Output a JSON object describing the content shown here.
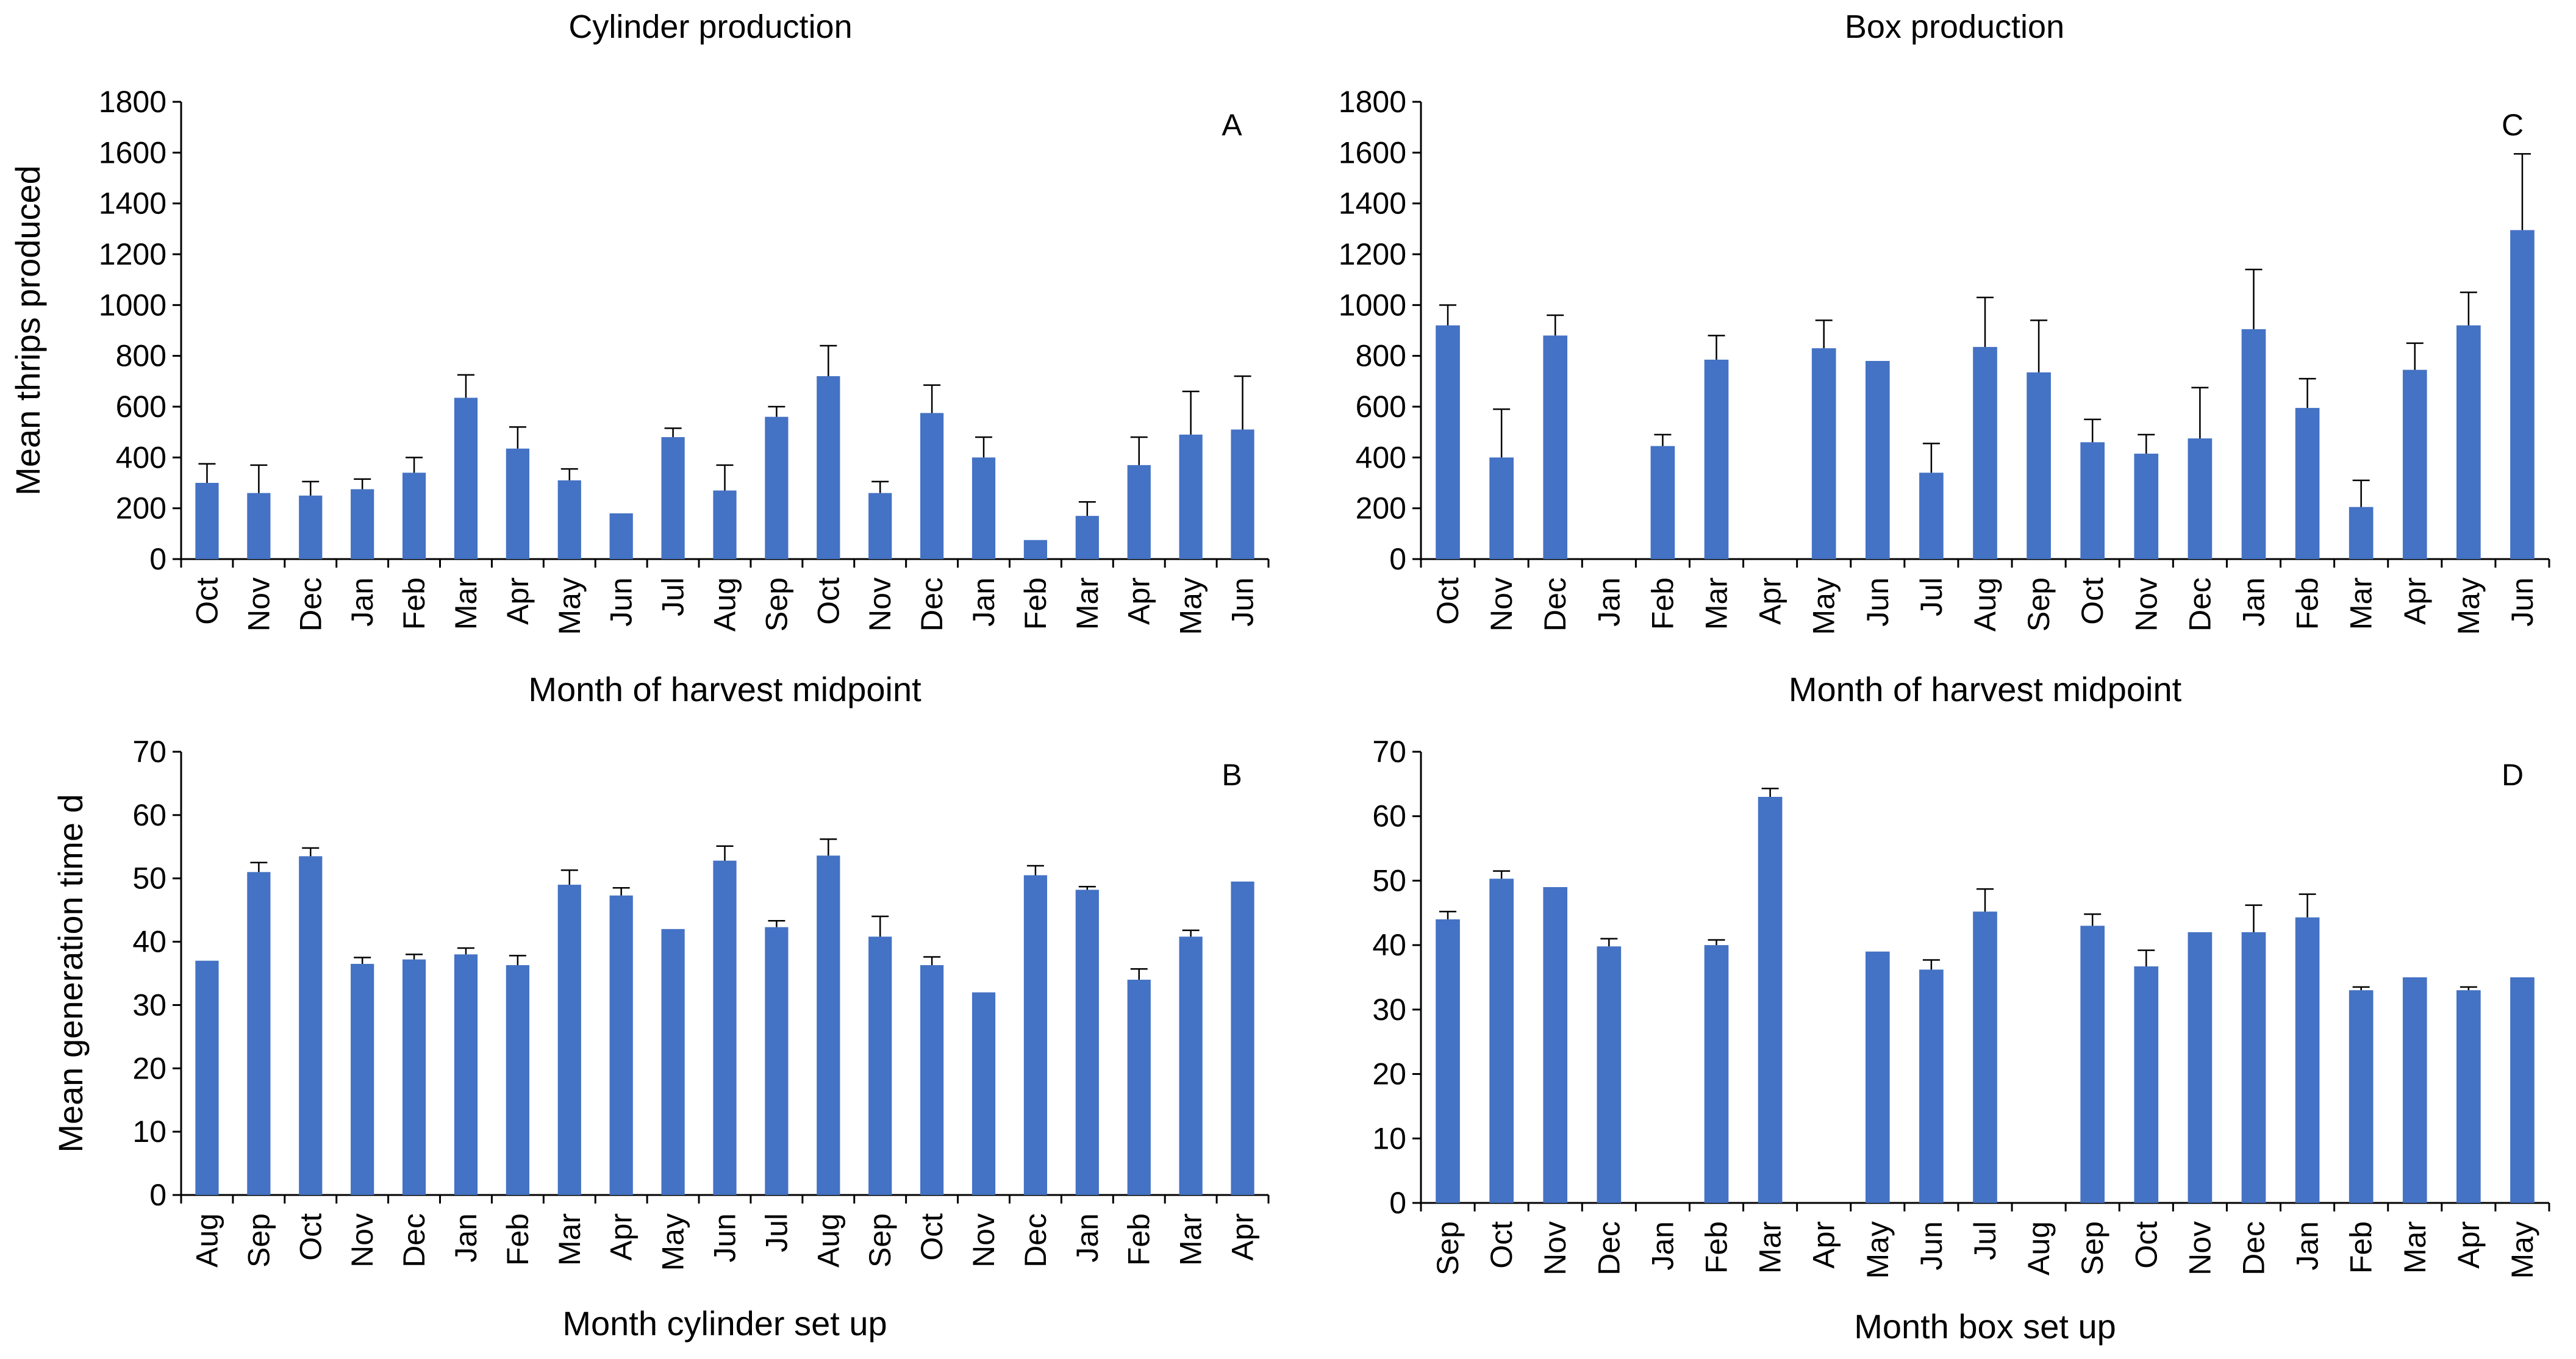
{
  "chart_data": [
    {
      "id": "A",
      "type": "bar",
      "panel_label": "A",
      "group_title": "Cylinder production",
      "title": "",
      "xlabel": "Month of harvest midpoint",
      "ylabel": "Mean thrips produced",
      "ylim": [
        0,
        1800
      ],
      "yticks": [
        "0",
        "200",
        "400",
        "600",
        "800",
        "1000",
        "1200",
        "1400",
        "1600",
        "1800"
      ],
      "categories": [
        "Oct",
        "Nov",
        "Dec",
        "Jan",
        "Feb",
        "Mar",
        "Apr",
        "May",
        "Jun",
        "Jul",
        "Aug",
        "Sep",
        "Oct",
        "Nov",
        "Dec",
        "Jan",
        "Feb",
        "Mar",
        "Apr",
        "May",
        "Jun"
      ],
      "values": [
        300,
        260,
        250,
        275,
        340,
        635,
        435,
        310,
        180,
        480,
        270,
        560,
        720,
        260,
        575,
        400,
        75,
        170,
        370,
        490,
        510
      ],
      "errors": [
        75,
        110,
        55,
        40,
        60,
        90,
        85,
        45,
        0,
        35,
        100,
        40,
        120,
        45,
        110,
        80,
        0,
        55,
        110,
        170,
        210
      ]
    },
    {
      "id": "B",
      "type": "bar",
      "panel_label": "B",
      "title": "",
      "xlabel": "Month cylinder set up",
      "ylabel": "Mean generation time d",
      "ylim": [
        0,
        70
      ],
      "yticks": [
        "0",
        "10",
        "20",
        "30",
        "40",
        "50",
        "60",
        "70"
      ],
      "categories": [
        "Aug",
        "Sep",
        "Oct",
        "Nov",
        "Dec",
        "Jan",
        "Feb",
        "Mar",
        "Apr",
        "May",
        "Jun",
        "Jul",
        "Aug",
        "Sep",
        "Oct",
        "Nov",
        "Dec",
        "Jan",
        "Feb",
        "Mar",
        "Apr"
      ],
      "values": [
        37,
        51,
        53.5,
        36.5,
        37.2,
        38,
        36.3,
        49,
        47.3,
        42,
        52.8,
        42.3,
        53.6,
        40.8,
        36.3,
        32,
        50.5,
        48.2,
        34,
        40.8,
        49.5
      ],
      "errors": [
        0,
        1.5,
        1.3,
        1,
        0.8,
        1,
        1.5,
        2.3,
        1.2,
        0,
        2.3,
        1,
        2.6,
        3.2,
        1.3,
        0,
        1.5,
        0.5,
        1.7,
        1,
        0
      ]
    },
    {
      "id": "C",
      "type": "bar",
      "panel_label": "C",
      "group_title": "Box production",
      "title": "",
      "xlabel": "Month of harvest midpoint",
      "ylabel": "",
      "ylim": [
        0,
        1800
      ],
      "yticks": [
        "0",
        "200",
        "400",
        "600",
        "800",
        "1000",
        "1200",
        "1400",
        "1600",
        "1800"
      ],
      "categories": [
        "Oct",
        "Nov",
        "Dec",
        "Jan",
        "Feb",
        "Mar",
        "Apr",
        "May",
        "Jun",
        "Jul",
        "Aug",
        "Sep",
        "Oct",
        "Nov",
        "Dec",
        "Jan",
        "Feb",
        "Mar",
        "Apr",
        "May",
        "Jun"
      ],
      "values": [
        920,
        400,
        880,
        null,
        445,
        785,
        null,
        830,
        780,
        340,
        835,
        735,
        460,
        415,
        475,
        905,
        595,
        205,
        745,
        920,
        1295
      ],
      "errors": [
        80,
        190,
        80,
        0,
        45,
        95,
        0,
        110,
        0,
        115,
        195,
        205,
        90,
        75,
        200,
        235,
        115,
        105,
        105,
        130,
        300
      ]
    },
    {
      "id": "D",
      "type": "bar",
      "panel_label": "D",
      "title": "",
      "xlabel": "Month box set up",
      "ylabel": "",
      "ylim": [
        0,
        70
      ],
      "yticks": [
        "0",
        "10",
        "20",
        "30",
        "40",
        "50",
        "60",
        "70"
      ],
      "categories": [
        "Sep",
        "Oct",
        "Nov",
        "Dec",
        "Jan",
        "Feb",
        "Mar",
        "Apr",
        "May",
        "Jun",
        "Jul",
        "Aug",
        "Sep",
        "Oct",
        "Nov",
        "Dec",
        "Jan",
        "Feb",
        "Mar",
        "Apr",
        "May"
      ],
      "values": [
        44,
        50.3,
        49,
        39.8,
        null,
        40,
        63,
        null,
        39,
        36.2,
        45.2,
        null,
        43,
        36.7,
        42,
        42,
        44.3,
        33,
        35,
        33,
        35
      ],
      "errors": [
        1.2,
        1.2,
        0,
        1.2,
        0,
        0.8,
        1.3,
        0,
        0,
        1.5,
        3.5,
        0,
        1.8,
        2.5,
        0,
        4.2,
        3.6,
        0.5,
        0,
        0.5,
        0
      ]
    }
  ]
}
